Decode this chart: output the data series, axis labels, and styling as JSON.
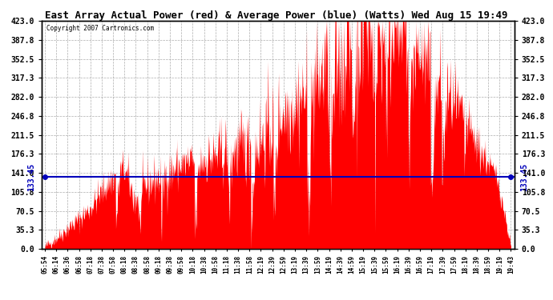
{
  "title": "East Array Actual Power (red) & Average Power (blue) (Watts) Wed Aug 15 19:49",
  "copyright": "Copyright 2007 Cartronics.com",
  "average_value": 133.45,
  "ylim": [
    0.0,
    423.0
  ],
  "yticks": [
    0.0,
    35.3,
    70.5,
    105.8,
    141.0,
    176.3,
    211.5,
    246.8,
    282.0,
    317.3,
    352.5,
    387.8,
    423.0
  ],
  "x_labels": [
    "05:54",
    "06:14",
    "06:36",
    "06:58",
    "07:18",
    "07:38",
    "07:58",
    "08:18",
    "08:38",
    "08:58",
    "09:18",
    "09:38",
    "09:58",
    "10:18",
    "10:38",
    "10:58",
    "11:18",
    "11:38",
    "11:58",
    "12:19",
    "12:39",
    "12:59",
    "13:19",
    "13:39",
    "13:59",
    "14:19",
    "14:39",
    "14:59",
    "15:19",
    "15:39",
    "15:59",
    "16:19",
    "16:39",
    "16:59",
    "17:19",
    "17:39",
    "17:59",
    "18:19",
    "18:39",
    "18:59",
    "19:19",
    "19:43"
  ],
  "fill_color": "#ff0000",
  "line_color": "#0000bb",
  "background_color": "#ffffff",
  "grid_color": "#999999",
  "title_color": "#000000",
  "copyright_color": "#000000"
}
